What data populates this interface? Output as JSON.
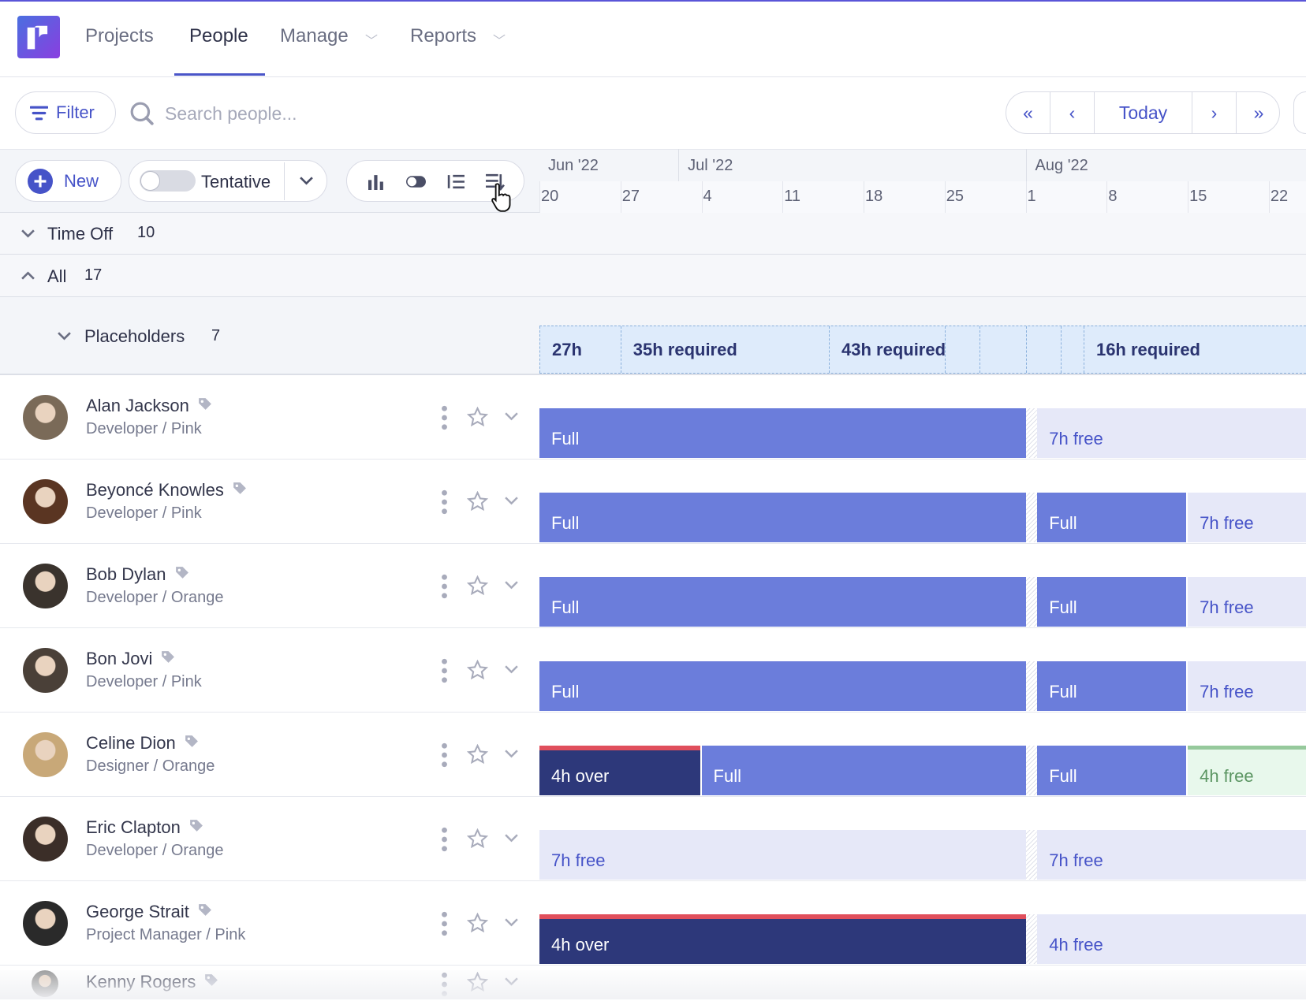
{
  "colors": {
    "accent": "#4653c8",
    "full": "#6b7ddb",
    "free": "#e6e8f8",
    "over": "#2d387a",
    "over_marker": "#e04f5c",
    "green_free": "#e8f8ec",
    "placeholder": "#deebfb"
  },
  "nav": {
    "items": [
      {
        "label": "Projects",
        "active": false
      },
      {
        "label": "People",
        "active": true
      },
      {
        "label": "Manage",
        "dropdown": true
      },
      {
        "label": "Reports",
        "dropdown": true
      }
    ]
  },
  "toolbar": {
    "filter_label": "Filter",
    "search_placeholder": "Search people...",
    "today_label": "Today",
    "first_icon": "double-chevron-left-icon",
    "prev_icon": "chevron-left-icon",
    "next_icon": "chevron-right-icon",
    "last_icon": "double-chevron-right-icon"
  },
  "actions": {
    "new_label": "New",
    "tentative_label": "Tentative",
    "tentative_on": false,
    "view_icons": [
      "bar-chart-icon",
      "toggle-icon",
      "list-icon",
      "sort-icon"
    ]
  },
  "timeline": {
    "start": "2022-06-20",
    "months": [
      {
        "label": "Jun '22",
        "start": "2022-06-20"
      },
      {
        "label": "Jul '22",
        "start": "2022-07-02"
      },
      {
        "label": "Aug '22",
        "start": "2022-08-01"
      }
    ],
    "weeks": [
      "20",
      "27",
      "4",
      "11",
      "18",
      "25",
      "1",
      "8",
      "15",
      "22"
    ],
    "holiday": "2022-08-01"
  },
  "groups": {
    "time_off": {
      "label": "Time Off",
      "count": "10",
      "expanded": false
    },
    "all": {
      "label": "All",
      "count": "17",
      "expanded": true
    },
    "placeholders": {
      "label": "Placeholders",
      "count": "7",
      "expanded": false,
      "segments": [
        {
          "label": "27h",
          "start": "2022-06-20"
        },
        {
          "label": "35h required",
          "start": "2022-06-27"
        },
        {
          "label": "43h required",
          "start": "2022-07-15"
        },
        {
          "label": "",
          "start": "2022-07-25"
        },
        {
          "label": "",
          "start": "2022-07-28"
        },
        {
          "label": "",
          "start": "2022-08-01"
        },
        {
          "label": "",
          "start": "2022-08-04"
        },
        {
          "label": "16h required",
          "start": "2022-08-06"
        }
      ]
    }
  },
  "people": [
    {
      "name": "Alan Jackson",
      "role": "Developer / Pink",
      "bars": [
        {
          "label": "Full",
          "type": "full",
          "start": "2022-06-20",
          "end": "2022-08-01"
        },
        {
          "label": "7h free",
          "type": "free",
          "start": "2022-08-02",
          "end": "2022-09-01"
        }
      ]
    },
    {
      "name": "Beyoncé Knowles",
      "role": "Developer / Pink",
      "bars": [
        {
          "label": "Full",
          "type": "full",
          "start": "2022-06-20",
          "end": "2022-08-01"
        },
        {
          "label": "Full",
          "type": "full",
          "start": "2022-08-02",
          "end": "2022-08-15"
        },
        {
          "label": "7h free",
          "type": "free",
          "start": "2022-08-15",
          "end": "2022-09-01"
        }
      ]
    },
    {
      "name": "Bob Dylan",
      "role": "Developer / Orange",
      "bars": [
        {
          "label": "Full",
          "type": "full",
          "start": "2022-06-20",
          "end": "2022-08-01"
        },
        {
          "label": "Full",
          "type": "full",
          "start": "2022-08-02",
          "end": "2022-08-15"
        },
        {
          "label": "7h free",
          "type": "free",
          "start": "2022-08-15",
          "end": "2022-09-01"
        }
      ]
    },
    {
      "name": "Bon Jovi",
      "role": "Developer / Pink",
      "bars": [
        {
          "label": "Full",
          "type": "full",
          "start": "2022-06-20",
          "end": "2022-08-01"
        },
        {
          "label": "Full",
          "type": "full",
          "start": "2022-08-02",
          "end": "2022-08-15"
        },
        {
          "label": "7h free",
          "type": "free",
          "start": "2022-08-15",
          "end": "2022-09-01"
        }
      ]
    },
    {
      "name": "Celine Dion",
      "role": "Designer / Orange",
      "bars": [
        {
          "label": "4h over",
          "type": "over",
          "start": "2022-06-20",
          "end": "2022-07-04"
        },
        {
          "label": "Full",
          "type": "full",
          "start": "2022-07-04",
          "end": "2022-08-01"
        },
        {
          "label": "Full",
          "type": "full",
          "start": "2022-08-02",
          "end": "2022-08-15"
        },
        {
          "label": "4h free",
          "type": "greenfree",
          "start": "2022-08-15",
          "end": "2022-09-01"
        }
      ]
    },
    {
      "name": "Eric Clapton",
      "role": "Developer / Orange",
      "bars": [
        {
          "label": "7h free",
          "type": "free",
          "start": "2022-06-20",
          "end": "2022-08-01"
        },
        {
          "label": "7h free",
          "type": "free",
          "start": "2022-08-02",
          "end": "2022-09-01"
        }
      ]
    },
    {
      "name": "George Strait",
      "role": "Project Manager / Pink",
      "bars": [
        {
          "label": "4h over",
          "type": "over",
          "start": "2022-06-20",
          "end": "2022-08-01"
        },
        {
          "label": "4h free",
          "type": "free",
          "start": "2022-08-02",
          "end": "2022-09-01"
        }
      ]
    },
    {
      "name": "Kenny Rogers",
      "role": "",
      "bars": []
    }
  ]
}
